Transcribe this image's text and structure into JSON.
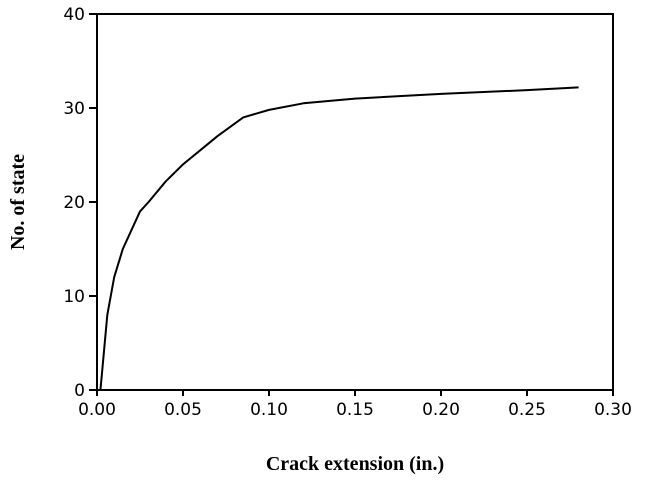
{
  "chart_data": {
    "type": "line",
    "xlabel": "Crack extension (in.)",
    "ylabel": "No. of state",
    "x": [
      0.002,
      0.004,
      0.006,
      0.01,
      0.015,
      0.02,
      0.025,
      0.03,
      0.04,
      0.05,
      0.06,
      0.07,
      0.085,
      0.1,
      0.12,
      0.15,
      0.2,
      0.25,
      0.28
    ],
    "series": [
      {
        "name": "No. of state",
        "color": "#000000",
        "values": [
          0,
          4,
          8,
          12,
          15,
          17,
          19,
          20,
          22.2,
          24,
          25.5,
          27,
          29,
          29.8,
          30.5,
          31,
          31.5,
          31.9,
          32.2
        ]
      }
    ],
    "xlim": [
      0,
      0.3
    ],
    "xticks": [
      {
        "value": 0,
        "label": "0.00"
      },
      {
        "value": 0.05,
        "label": "0.05"
      },
      {
        "value": 0.1,
        "label": "0.10"
      },
      {
        "value": 0.15,
        "label": "0.15"
      },
      {
        "value": 0.2,
        "label": "0.20"
      },
      {
        "value": 0.25,
        "label": "0.25"
      },
      {
        "value": 0.3,
        "label": "0.30"
      }
    ],
    "ylim": [
      0,
      40
    ],
    "yticks": [
      0,
      10,
      20,
      30,
      40
    ],
    "grid": false
  }
}
